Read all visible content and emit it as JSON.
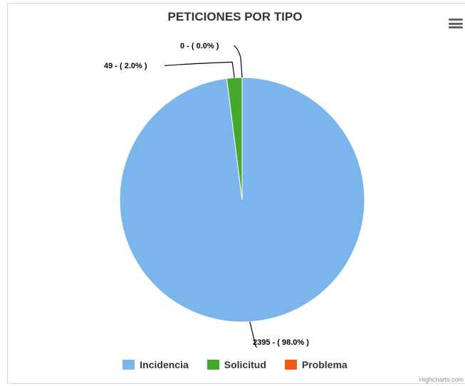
{
  "chart_data": {
    "type": "pie",
    "title": "PETICIONES POR TIPO",
    "categories": [
      "Incidencia",
      "Solicitud",
      "Problema"
    ],
    "values": [
      2395,
      49,
      0
    ],
    "percent_labels": [
      "2395 - ( 98.0% )",
      "49 - ( 2.0% )",
      "0 - ( 0.0% )"
    ],
    "colors": [
      "#7cb5ec",
      "#43a82c",
      "#f15c1e"
    ],
    "legend_position": "bottom-center"
  },
  "legend": [
    {
      "label": "Incidencia",
      "color": "#7cb5ec"
    },
    {
      "label": "Solicitud",
      "color": "#43a82c"
    },
    {
      "label": "Problema",
      "color": "#f15c1e"
    }
  ],
  "menu_icon": "hamburger-menu-icon",
  "credits": "Highcharts.com"
}
